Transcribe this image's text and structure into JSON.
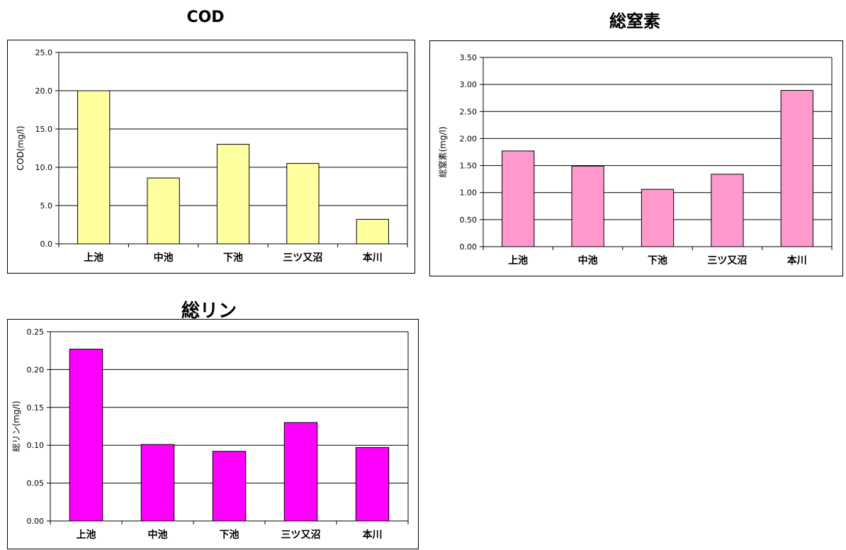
{
  "chart_data": [
    {
      "type": "bar",
      "title": "COD",
      "xlabel": "",
      "ylabel": "COD(mg/l)",
      "categories": [
        "上池",
        "中池",
        "下池",
        "三ツ又沼",
        "本川"
      ],
      "values": [
        20.0,
        8.6,
        13.0,
        10.5,
        3.2
      ],
      "ylim": [
        0,
        25
      ],
      "yticks": [
        "0.0",
        "5.0",
        "10.0",
        "15.0",
        "20.0",
        "25.0"
      ],
      "bar_color": "#ffffa0",
      "grid": true,
      "legend": "none"
    },
    {
      "type": "bar",
      "title": "総窒素",
      "xlabel": "",
      "ylabel": "総窒素(mg/l)",
      "categories": [
        "上池",
        "中池",
        "下池",
        "三ツ又沼",
        "本川"
      ],
      "values": [
        1.77,
        1.49,
        1.06,
        1.34,
        2.89
      ],
      "ylim": [
        0,
        3.5
      ],
      "yticks": [
        "0.00",
        "0.50",
        "1.00",
        "1.50",
        "2.00",
        "2.50",
        "3.00",
        "3.50"
      ],
      "bar_color": "#ff99cc",
      "grid": true,
      "legend": "none"
    },
    {
      "type": "bar",
      "title": "総リン",
      "xlabel": "",
      "ylabel": "総リン(mg/l)",
      "categories": [
        "上池",
        "中池",
        "下池",
        "三ツ又沼",
        "本川"
      ],
      "values": [
        0.227,
        0.101,
        0.092,
        0.13,
        0.097
      ],
      "ylim": [
        0,
        0.25
      ],
      "yticks": [
        "0.00",
        "0.05",
        "0.10",
        "0.15",
        "0.20",
        "0.25"
      ],
      "bar_color": "#ff00ff",
      "grid": true,
      "legend": "none"
    }
  ]
}
